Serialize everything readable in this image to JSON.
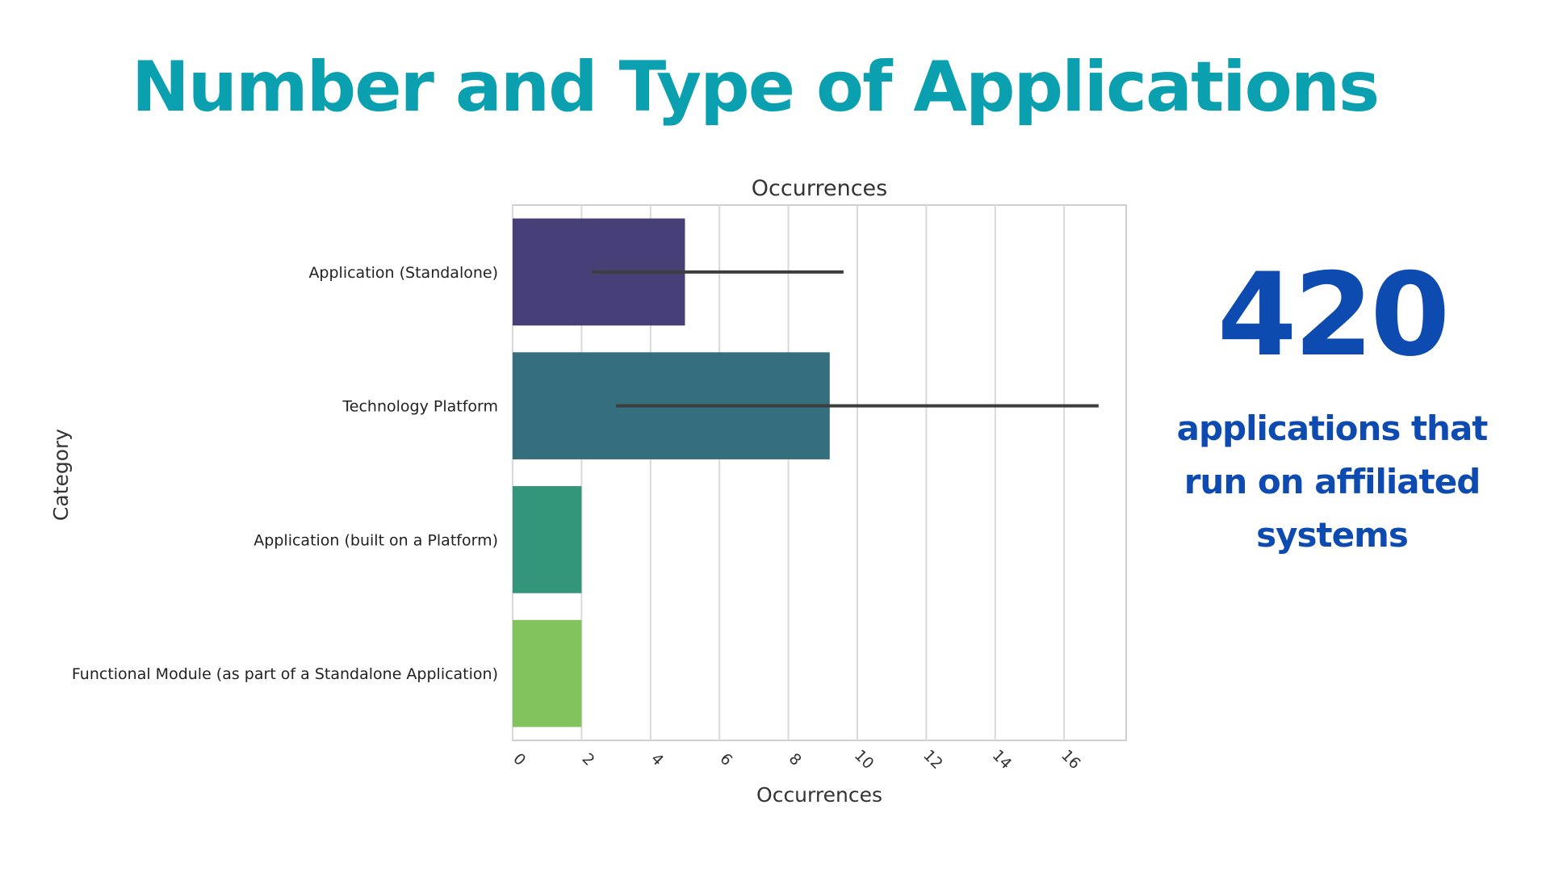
{
  "slide": {
    "title": "Number and Type of Applications"
  },
  "stat": {
    "number": "420",
    "caption": "applications that run on affiliated systems",
    "color": "#0d4bb0"
  },
  "colors": {
    "title": "#0aa0b0"
  },
  "chart_data": {
    "type": "bar",
    "orientation": "horizontal",
    "title": "Occurrences",
    "xlabel": "Occurrences",
    "ylabel": "Category",
    "categories": [
      "Application (Standalone)",
      "Technology Platform",
      "Application (built on a Platform)",
      "Functional Module (as part of a Standalone Application)"
    ],
    "values": [
      5,
      9.2,
      2,
      2
    ],
    "error_bars": [
      [
        2.3,
        9.6
      ],
      [
        3,
        17
      ],
      null,
      null
    ],
    "bar_colors": [
      "#473f78",
      "#356f7d",
      "#33957a",
      "#82c35e"
    ],
    "xlim": [
      0,
      17.8
    ],
    "xticks": [
      0,
      2,
      4,
      6,
      8,
      10,
      12,
      14,
      16
    ],
    "grid": true,
    "style": "seaborn-whitegrid"
  }
}
